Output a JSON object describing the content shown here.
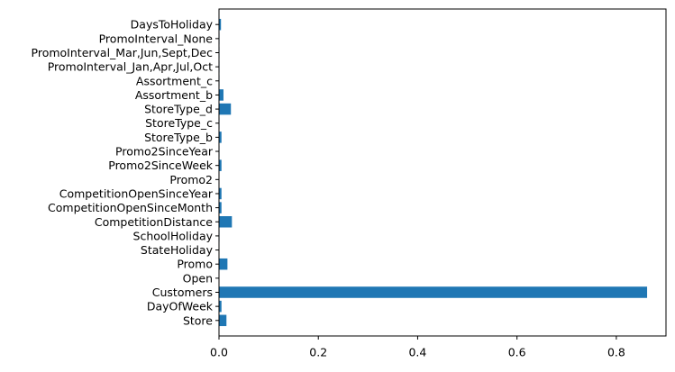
{
  "chart_data": {
    "type": "bar",
    "orientation": "horizontal",
    "categories": [
      "Store",
      "DayOfWeek",
      "Customers",
      "Open",
      "Promo",
      "StateHoliday",
      "SchoolHoliday",
      "CompetitionDistance",
      "CompetitionOpenSinceMonth",
      "CompetitionOpenSinceYear",
      "Promo2",
      "Promo2SinceWeek",
      "Promo2SinceYear",
      "StoreType_b",
      "StoreType_c",
      "StoreType_d",
      "Assortment_b",
      "Assortment_c",
      "PromoInterval_Jan,Apr,Jul,Oct",
      "PromoInterval_Mar,Jun,Sept,Dec",
      "PromoInterval_None",
      "DaysToHoliday"
    ],
    "values": [
      0.015,
      0.005,
      0.862,
      0.0,
      0.017,
      0.0,
      0.001,
      0.026,
      0.005,
      0.005,
      0.0,
      0.005,
      0.001,
      0.005,
      0.001,
      0.024,
      0.009,
      0.001,
      0.001,
      0.001,
      0.001,
      0.004
    ],
    "title": "",
    "xlabel": "",
    "ylabel": "",
    "xlim": [
      0.0,
      0.9
    ],
    "xticks": [
      0.0,
      0.2,
      0.4,
      0.6,
      0.8
    ],
    "xtick_labels": [
      "0.0",
      "0.2",
      "0.4",
      "0.6",
      "0.8"
    ],
    "grid": false,
    "legend": "none",
    "bar_color": "#1f77b4"
  }
}
